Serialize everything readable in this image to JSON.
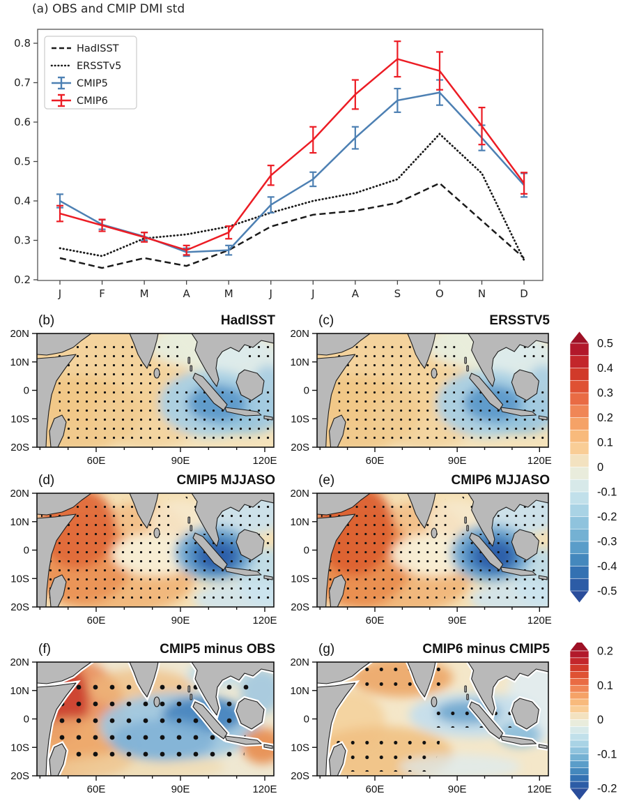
{
  "panel_a": {
    "title": "(a) OBS and CMIP DMI std"
  },
  "chart_data": {
    "type": "line",
    "title": "(a) OBS and CMIP DMI std",
    "months": [
      "J",
      "F",
      "M",
      "A",
      "M",
      "J",
      "J",
      "A",
      "S",
      "O",
      "N",
      "D"
    ],
    "ylim": [
      0.2,
      0.8
    ],
    "yticks": [
      "0.2",
      "0.3",
      "0.4",
      "0.5",
      "0.6",
      "0.7",
      "0.8"
    ],
    "grid": false,
    "legend_position": "upper left",
    "series": [
      {
        "name": "HadISST",
        "style": "dashed",
        "color": "#1a1a1a",
        "values": [
          0.255,
          0.23,
          0.255,
          0.235,
          0.275,
          0.335,
          0.365,
          0.375,
          0.395,
          0.445,
          0.35,
          0.255
        ]
      },
      {
        "name": "ERSSTv5",
        "style": "dotted",
        "color": "#1a1a1a",
        "values": [
          0.28,
          0.26,
          0.305,
          0.315,
          0.335,
          0.37,
          0.4,
          0.42,
          0.455,
          0.57,
          0.47,
          0.25
        ]
      },
      {
        "name": "CMIP5",
        "style": "solid",
        "color": "#4d80b3",
        "values": [
          0.4,
          0.34,
          0.31,
          0.27,
          0.275,
          0.39,
          0.455,
          0.56,
          0.655,
          0.675,
          0.56,
          0.44
        ],
        "errors": [
          0.017,
          0.012,
          0.01,
          0.01,
          0.012,
          0.02,
          0.018,
          0.028,
          0.03,
          0.032,
          0.032,
          0.03
        ]
      },
      {
        "name": "CMIP6",
        "style": "solid",
        "color": "#ec1c24",
        "values": [
          0.368,
          0.338,
          0.308,
          0.275,
          0.32,
          0.465,
          0.555,
          0.67,
          0.76,
          0.73,
          0.59,
          0.445
        ],
        "errors": [
          0.02,
          0.015,
          0.012,
          0.012,
          0.016,
          0.025,
          0.033,
          0.037,
          0.045,
          0.048,
          0.047,
          0.027
        ]
      }
    ]
  },
  "map_axes": {
    "lat_ticks": [
      "20N",
      "10N",
      "0",
      "10S",
      "20S"
    ],
    "lon_ticks": [
      "60E",
      "90E",
      "120E"
    ]
  },
  "map_panels": [
    {
      "label": "(b)",
      "title": "HadISST",
      "pattern": "obs",
      "dots": "small"
    },
    {
      "label": "(c)",
      "title": "ERSSTV5",
      "pattern": "obs",
      "dots": "small"
    },
    {
      "label": "(d)",
      "title": "CMIP5 MJJASO",
      "pattern": "cmip5",
      "dots": "small"
    },
    {
      "label": "(e)",
      "title": "CMIP6 MJJASO",
      "pattern": "cmip6",
      "dots": "small"
    },
    {
      "label": "(f)",
      "title": "CMIP5 minus OBS",
      "pattern": "difff",
      "dots": "large"
    },
    {
      "label": "(g)",
      "title": "CMIP6 minus CMIP5",
      "pattern": "diffg",
      "dots": "medium"
    }
  ],
  "colorbars": [
    {
      "ticks": [
        "0.5",
        "0.4",
        "0.3",
        "0.2",
        "0.1",
        "0",
        "-0.1",
        "-0.2",
        "-0.3",
        "-0.4",
        "-0.5"
      ],
      "vmin": -0.5,
      "vmax": 0.5,
      "palette": [
        "#b2182b",
        "#c3262b",
        "#d13a2a",
        "#df5133",
        "#e96b44",
        "#f08656",
        "#f5a267",
        "#f8ba7c",
        "#f9cd96",
        "#f3e2c0",
        "#e9ecdc",
        "#d7e9e9",
        "#c1e0ea",
        "#a9d3e5",
        "#8fc3dd",
        "#74b1d3",
        "#5a9dc9",
        "#4488bd",
        "#3371b2",
        "#2c5ca6"
      ],
      "arrow_top": "#9e1126",
      "arrow_bottom": "#2a4d9b"
    },
    {
      "ticks": [
        "0.2",
        "0.1",
        "0",
        "-0.1",
        "-0.2"
      ],
      "vmin": -0.2,
      "vmax": 0.2,
      "palette": [
        "#b2182b",
        "#c3262b",
        "#d13a2a",
        "#df5133",
        "#e96b44",
        "#f08656",
        "#f5a267",
        "#f8ba7c",
        "#f9cd96",
        "#f3e2c0",
        "#e9ecdc",
        "#d7e9e9",
        "#c1e0ea",
        "#a9d3e5",
        "#8fc3dd",
        "#74b1d3",
        "#5a9dc9",
        "#4488bd",
        "#3371b2",
        "#2c5ca6"
      ],
      "arrow_top": "#9e1126",
      "arrow_bottom": "#2a4d9b"
    }
  ],
  "colors": {
    "land": "#b9b9b9",
    "coastline": "#1b1b1b",
    "cmip5_blue": "#4d80b3",
    "cmip6_red": "#ec1c24"
  }
}
